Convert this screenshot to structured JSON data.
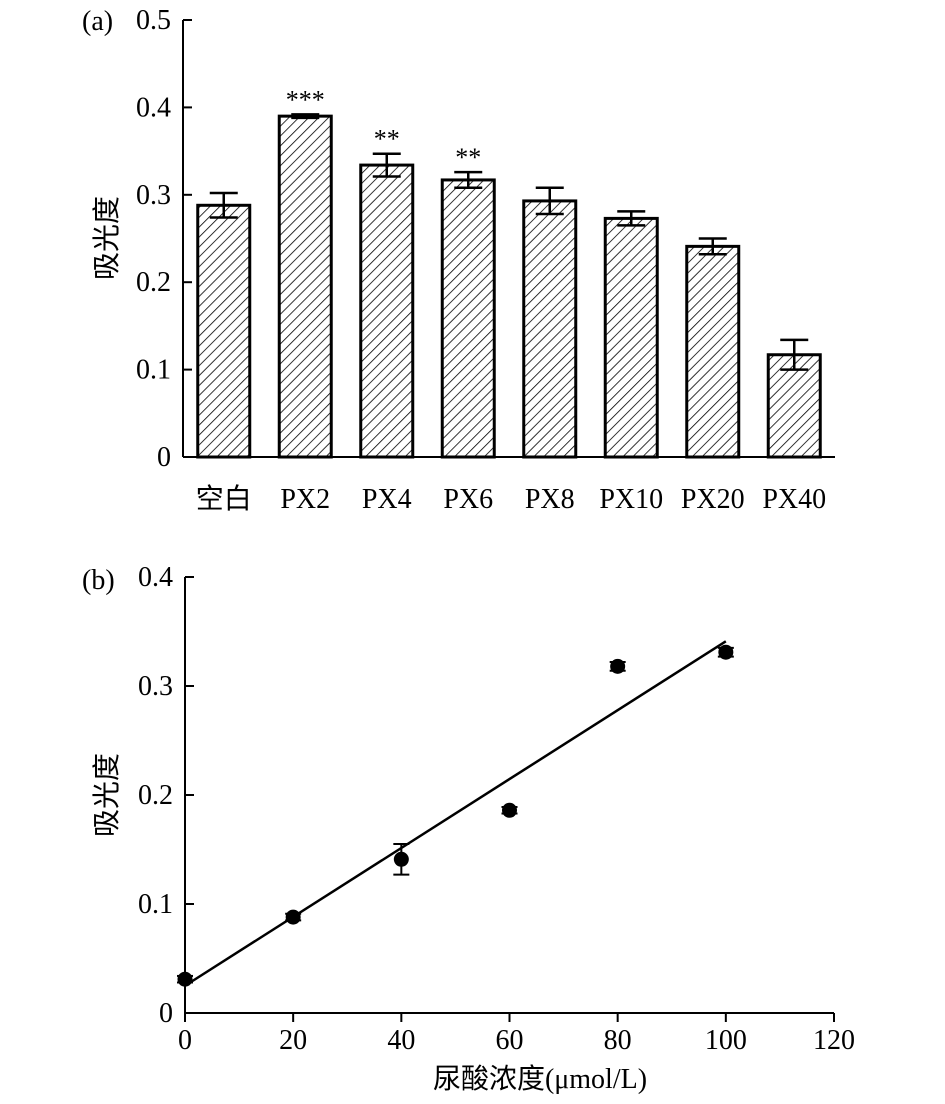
{
  "chart_data": [
    {
      "panel": "(a)",
      "type": "bar",
      "categories": [
        "空白",
        "PX2",
        "PX4",
        "PX6",
        "PX8",
        "PX10",
        "PX20",
        "PX40"
      ],
      "values": [
        0.288,
        0.39,
        0.334,
        0.317,
        0.293,
        0.273,
        0.241,
        0.117
      ],
      "errors": [
        0.014,
        0.002,
        0.013,
        0.009,
        0.015,
        0.008,
        0.009,
        0.017
      ],
      "annotations": [
        "",
        "***",
        "**",
        "**",
        "",
        "",
        "",
        ""
      ],
      "xlabel": "",
      "ylabel": "吸光度",
      "ylim": [
        0,
        0.5
      ],
      "yticks": [
        0,
        0.1,
        0.2,
        0.3,
        0.4,
        0.5
      ],
      "ytick_labels": [
        "0",
        "0.1",
        "0.2",
        "0.3",
        "0.4",
        "0.5"
      ],
      "bar_fill": "hatched",
      "grid": false
    },
    {
      "panel": "(b)",
      "type": "scatter",
      "x": [
        0,
        20,
        40,
        60,
        80,
        100
      ],
      "y": [
        0.031,
        0.088,
        0.141,
        0.186,
        0.318,
        0.331
      ],
      "errors": [
        0.003,
        0.003,
        0.014,
        0.003,
        0.004,
        0.004
      ],
      "fit_line": {
        "x": [
          0,
          100
        ],
        "y": [
          0.025,
          0.341
        ]
      },
      "xlabel": "尿酸浓度(μmol/L)",
      "ylabel": "吸光度",
      "xlim": [
        0,
        120
      ],
      "ylim": [
        0,
        0.4
      ],
      "xticks": [
        0,
        20,
        40,
        60,
        80,
        100,
        120
      ],
      "xtick_labels": [
        "0",
        "20",
        "40",
        "60",
        "80",
        "100",
        "120"
      ],
      "yticks": [
        0,
        0.1,
        0.2,
        0.3,
        0.4
      ],
      "ytick_labels": [
        "0",
        "0.1",
        "0.2",
        "0.3",
        "0.4"
      ],
      "grid": false
    }
  ]
}
